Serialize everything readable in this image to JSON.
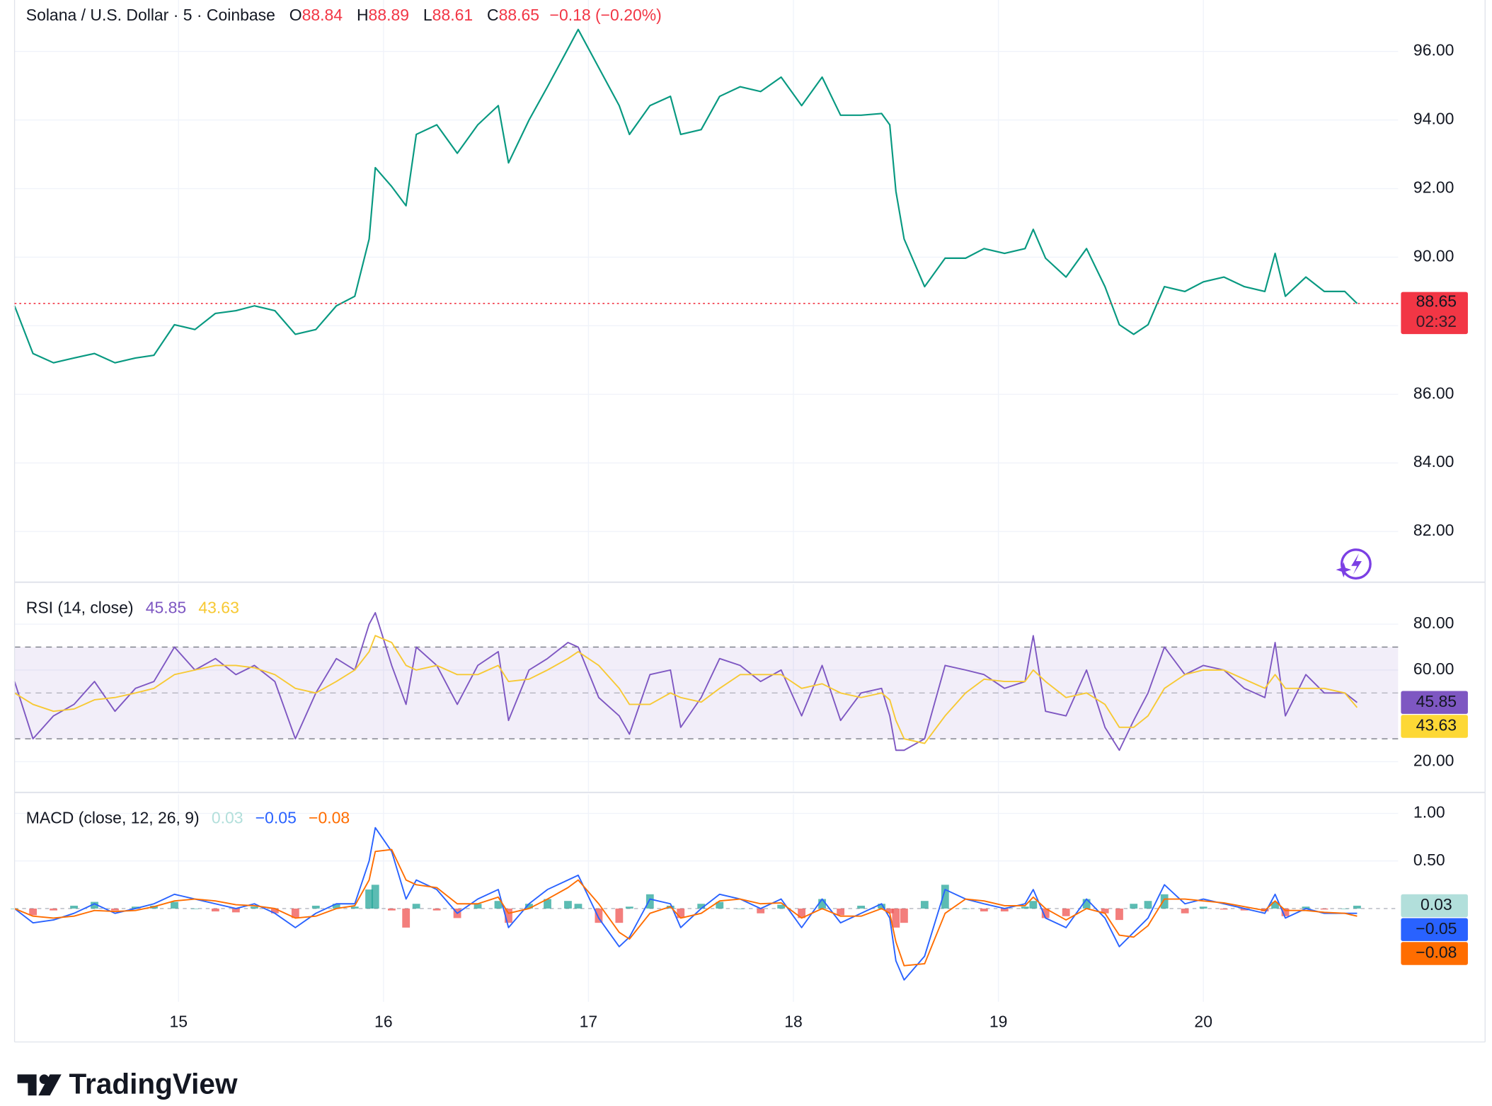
{
  "chart_data": {
    "type": "line",
    "x": [
      14.2,
      14.29,
      14.39,
      14.49,
      14.59,
      14.69,
      14.79,
      14.88,
      14.98,
      15.08,
      15.18,
      15.28,
      15.37,
      15.47,
      15.57,
      15.67,
      15.77,
      15.86,
      15.93,
      15.96,
      16.04,
      16.11,
      16.16,
      16.26,
      16.36,
      16.46,
      16.56,
      16.61,
      16.71,
      16.8,
      16.9,
      16.95,
      17.05,
      17.15,
      17.2,
      17.3,
      17.4,
      17.45,
      17.55,
      17.64,
      17.74,
      17.84,
      17.94,
      18.04,
      18.14,
      18.23,
      18.33,
      18.43,
      18.47,
      18.5,
      18.54,
      18.64,
      18.74,
      18.84,
      18.93,
      19.03,
      19.13,
      19.17,
      19.23,
      19.33,
      19.43,
      19.52,
      19.59,
      19.66,
      19.73,
      19.81,
      19.91,
      20.0,
      20.1,
      20.2,
      20.3,
      20.35,
      20.4,
      20.5,
      20.59,
      20.69,
      20.75
    ],
    "xlim": [
      14.2,
      20.95
    ],
    "xticks": [
      15,
      16,
      17,
      18,
      19,
      20
    ],
    "grid": true,
    "panes": [
      {
        "legend": {
          "symbol": "Solana / U.S. Dollar · 5 · Coinbase",
          "letters": [
            "O",
            "H",
            "L",
            "C"
          ],
          "ohlc": [
            88.84,
            88.89,
            88.61,
            88.65
          ],
          "change": "−0.18 (−0.20%)",
          "change_color": "#f23645"
        },
        "ylim": [
          80.55,
          97.5
        ],
        "yticks": [
          {
            "value": 82,
            "label": "82.00"
          },
          {
            "value": 84,
            "label": "84.00"
          },
          {
            "value": 86,
            "label": "86.00"
          },
          {
            "value": 88,
            "label": "88.00"
          },
          {
            "value": 90,
            "label": "90.00"
          },
          {
            "value": 92,
            "label": "92.00"
          },
          {
            "value": 94,
            "label": "94.00"
          },
          {
            "value": 96,
            "label": "96.00"
          }
        ],
        "series": [
          {
            "type": "line",
            "color": "#089981",
            "tag_color": "#f23645",
            "tag_text_color": "#ffffff",
            "values": [
              88.58,
              87.19,
              86.92,
              87.06,
              87.19,
              86.92,
              87.06,
              87.14,
              88.03,
              87.89,
              88.36,
              88.44,
              88.58,
              88.44,
              87.75,
              87.89,
              88.58,
              88.86,
              90.53,
              92.61,
              92.06,
              91.5,
              93.58,
              93.86,
              93.03,
              93.86,
              94.42,
              92.75,
              94.0,
              94.97,
              96.08,
              96.64,
              95.53,
              94.42,
              93.58,
              94.42,
              94.69,
              93.58,
              93.72,
              94.69,
              94.97,
              94.83,
              95.25,
              94.42,
              95.25,
              94.14,
              94.14,
              94.19,
              93.86,
              91.92,
              90.53,
              89.14,
              89.97,
              89.97,
              90.25,
              90.11,
              90.25,
              90.81,
              89.97,
              89.42,
              90.25,
              89.14,
              88.03,
              87.75,
              88.03,
              89.14,
              89.0,
              89.28,
              89.42,
              89.14,
              89.0,
              90.11,
              88.86,
              89.42,
              89.0,
              89.0,
              88.65
            ]
          }
        ],
        "countdown": "02:32"
      },
      {
        "title": "RSI (14, close)",
        "ylim": [
          7,
          97.5
        ],
        "yticks": [
          {
            "value": 20,
            "label": "20.00"
          },
          {
            "value": 60,
            "label": "60.00"
          },
          {
            "value": 80,
            "label": "80.00"
          }
        ],
        "bands": [
          30,
          50,
          70
        ],
        "band_color": "#7e57c2",
        "legend_values": [
          45.85,
          43.63
        ],
        "series": [
          {
            "type": "line",
            "color": "#7e57c2",
            "tag_color": "#7e57c2",
            "tag_text_color": "#ffffff",
            "values": [
              55,
              30,
              40,
              45,
              55,
              42,
              52,
              55,
              70,
              60,
              65,
              58,
              62,
              55,
              30,
              50,
              65,
              60,
              80,
              85,
              62,
              45,
              70,
              62,
              45,
              62,
              68,
              38,
              60,
              65,
              72,
              70,
              48,
              40,
              32,
              58,
              60,
              35,
              48,
              65,
              62,
              55,
              60,
              40,
              62,
              38,
              50,
              52,
              40,
              25,
              25,
              30,
              62,
              60,
              58,
              52,
              55,
              75,
              42,
              40,
              60,
              35,
              25,
              38,
              50,
              70,
              58,
              62,
              60,
              52,
              48,
              72,
              40,
              58,
              50,
              50,
              45.85
            ]
          },
          {
            "type": "line",
            "color": "#f7c934",
            "tag_color": "#fdd835",
            "tag_text_color": "#131722",
            "values": [
              50,
              45,
              42,
              43,
              47,
              48,
              50,
              52,
              58,
              60,
              62,
              62,
              61,
              58,
              52,
              50,
              55,
              60,
              68,
              75,
              72,
              62,
              60,
              62,
              58,
              58,
              62,
              55,
              56,
              60,
              65,
              68,
              62,
              52,
              45,
              45,
              50,
              48,
              46,
              52,
              58,
              58,
              58,
              52,
              54,
              50,
              48,
              50,
              47,
              38,
              30,
              28,
              40,
              50,
              56,
              55,
              55,
              60,
              55,
              48,
              50,
              45,
              35,
              35,
              40,
              52,
              58,
              60,
              60,
              56,
              52,
              58,
              52,
              52,
              52,
              50,
              43.63
            ]
          }
        ]
      },
      {
        "title": "MACD (close, 12, 26, 9)",
        "ylim": [
          -0.98,
          1.2
        ],
        "yticks": [
          {
            "value": 0.5,
            "label": "0.50"
          },
          {
            "value": 1,
            "label": "1.00"
          }
        ],
        "legend_values": [
          0.03,
          {
            "value": -0.05,
            "label": "−0.05"
          },
          {
            "value": -0.08,
            "label": "−0.08"
          }
        ],
        "series": [
          {
            "type": "histogram",
            "color": "#26a69a",
            "negative_color": "#ef5350",
            "legend_color": "#b2dfdb",
            "tag_color": "#b2dfdb",
            "tag_text_color": "#131722",
            "values": [
              0,
              -0.07,
              -0.02,
              0.03,
              0.07,
              -0.02,
              0.02,
              0.03,
              0.07,
              0,
              -0.03,
              -0.04,
              0.02,
              -0.05,
              -0.1,
              0.03,
              0.05,
              0.02,
              0.2,
              0.25,
              -0.02,
              -0.2,
              0.05,
              -0.02,
              -0.1,
              0.05,
              0.08,
              -0.15,
              0.05,
              0.1,
              0.08,
              0.05,
              -0.15,
              -0.15,
              0.02,
              0.15,
              0.03,
              -0.1,
              0.05,
              0.07,
              0,
              -0.05,
              0.04,
              -0.1,
              0.1,
              -0.07,
              0.03,
              0.05,
              -0.05,
              -0.2,
              -0.15,
              0.08,
              0.25,
              0,
              -0.03,
              -0.03,
              0.02,
              0.08,
              -0.1,
              -0.08,
              0.1,
              -0.05,
              -0.12,
              0.05,
              0.08,
              0.15,
              -0.05,
              0.02,
              -0.01,
              -0.02,
              -0.03,
              0.07,
              -0.08,
              0.02,
              -0.01,
              0,
              0.03
            ]
          },
          {
            "type": "line",
            "color": "#2962ff",
            "tag_color": "#2962ff",
            "tag_text_color": "#ffffff",
            "values": [
              0,
              -0.15,
              -0.12,
              -0.05,
              0.05,
              -0.05,
              0.0,
              0.05,
              0.15,
              0.1,
              0.05,
              0.0,
              0.05,
              -0.05,
              -0.2,
              -0.05,
              0.05,
              0.05,
              0.5,
              0.85,
              0.6,
              0.1,
              0.3,
              0.2,
              -0.05,
              0.1,
              0.2,
              -0.2,
              0.05,
              0.2,
              0.3,
              0.35,
              -0.1,
              -0.4,
              -0.3,
              0.1,
              0.05,
              -0.2,
              0.0,
              0.15,
              0.1,
              0.0,
              0.1,
              -0.2,
              0.1,
              -0.15,
              -0.05,
              0.05,
              -0.1,
              -0.55,
              -0.75,
              -0.5,
              0.2,
              0.1,
              0.05,
              0.0,
              0.05,
              0.2,
              -0.1,
              -0.2,
              0.1,
              -0.1,
              -0.4,
              -0.25,
              -0.1,
              0.25,
              0.05,
              0.1,
              0.05,
              0.0,
              -0.05,
              0.15,
              -0.1,
              0.0,
              -0.05,
              -0.05,
              -0.05
            ]
          },
          {
            "type": "line",
            "color": "#ff6d00",
            "tag_color": "#ff6d00",
            "tag_text_color": "#ffffff",
            "values": [
              0,
              -0.08,
              -0.1,
              -0.08,
              -0.02,
              -0.03,
              -0.02,
              0.02,
              0.08,
              0.1,
              0.08,
              0.04,
              0.03,
              0.0,
              -0.1,
              -0.08,
              0.0,
              0.03,
              0.3,
              0.6,
              0.62,
              0.3,
              0.25,
              0.22,
              0.05,
              0.05,
              0.12,
              -0.05,
              0.0,
              0.1,
              0.22,
              0.3,
              0.05,
              -0.25,
              -0.32,
              -0.05,
              0.02,
              -0.1,
              -0.05,
              0.08,
              0.1,
              0.05,
              0.06,
              -0.1,
              0.0,
              -0.08,
              -0.08,
              0.0,
              -0.05,
              -0.35,
              -0.6,
              -0.58,
              -0.05,
              0.1,
              0.08,
              0.03,
              0.03,
              0.12,
              0.0,
              -0.12,
              0.0,
              -0.05,
              -0.28,
              -0.3,
              -0.18,
              0.1,
              0.1,
              0.08,
              0.06,
              0.02,
              -0.02,
              0.08,
              -0.02,
              -0.02,
              -0.04,
              -0.05,
              -0.08
            ]
          }
        ]
      }
    ]
  },
  "brand": "TradingView"
}
